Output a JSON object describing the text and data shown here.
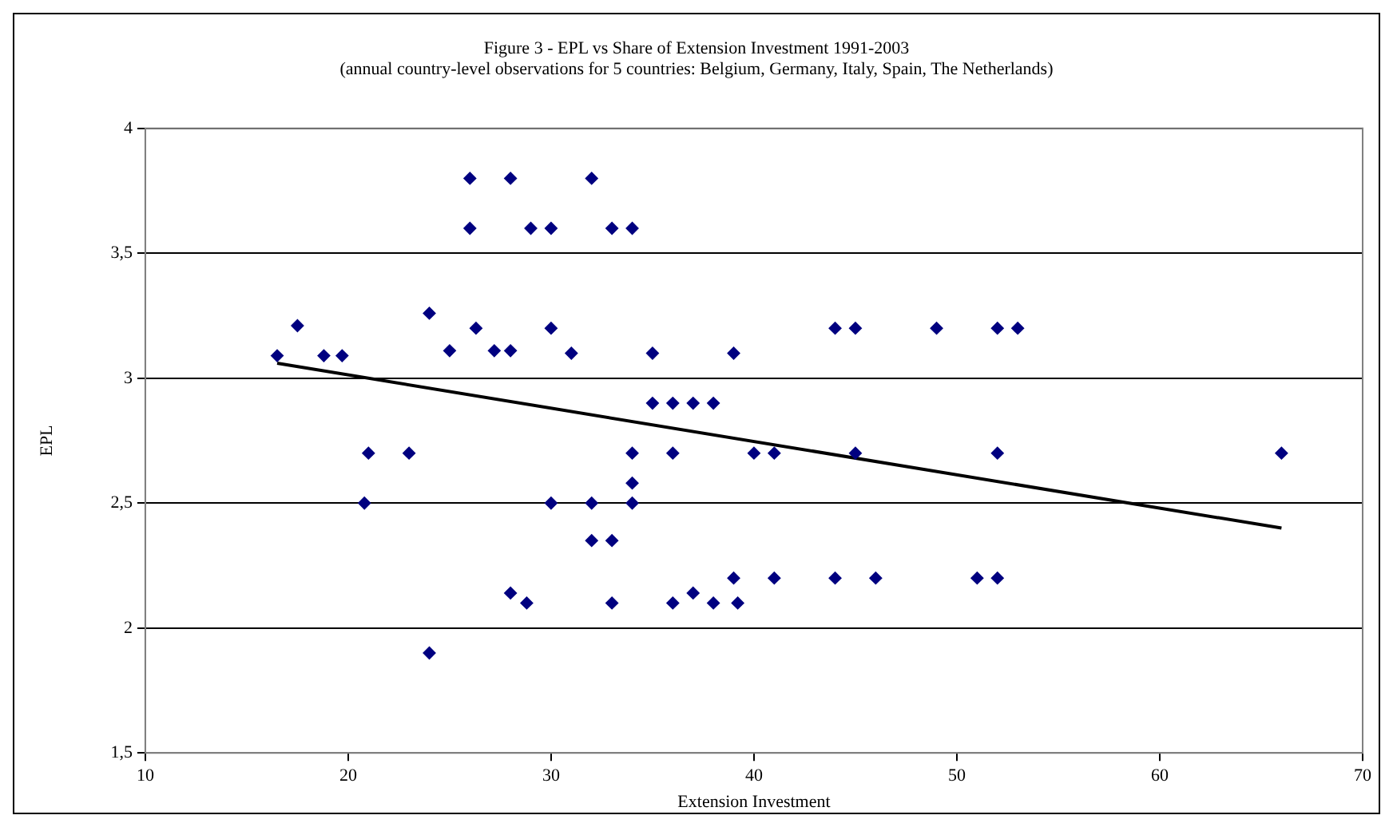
{
  "chart_data": {
    "type": "scatter",
    "title": "Figure 3 - EPL vs Share of Extension Investment 1991-2003",
    "subtitle": "(annual country-level observations for 5 countries: Belgium, Germany, Italy, Spain, The Netherlands)",
    "xlabel": "Extension Investment",
    "ylabel": "EPL",
    "xlim": [
      10,
      70
    ],
    "xticks": [
      10,
      20,
      30,
      40,
      50,
      60,
      70
    ],
    "ylim": [
      1.5,
      4
    ],
    "yticks": [
      {
        "value": 1.5,
        "label": "1,5"
      },
      2,
      {
        "value": 2.5,
        "label": "2,5"
      },
      3,
      {
        "value": 3.5,
        "label": "3,5"
      },
      4
    ],
    "grid": "y",
    "legend": false,
    "series": [
      {
        "type": "scatter",
        "marker": "diamond",
        "color": "#000080",
        "x": [
          16.5,
          17.5,
          18.8,
          19.7,
          24,
          25,
          26.3,
          27.2,
          28,
          30,
          31,
          35,
          39,
          44,
          45,
          49,
          52,
          53,
          26,
          28,
          32,
          26,
          29,
          30,
          33,
          34,
          21,
          23,
          34,
          36,
          40,
          41,
          45,
          52,
          66,
          35,
          36,
          37,
          38,
          20.8,
          30,
          32,
          34,
          34,
          32,
          33,
          28,
          28.8,
          33,
          36,
          37,
          38,
          39.2,
          39,
          41,
          44,
          46,
          51,
          52,
          24
        ],
        "values": [
          3.09,
          3.21,
          3.09,
          3.09,
          3.26,
          3.11,
          3.2,
          3.11,
          3.11,
          3.2,
          3.1,
          3.1,
          3.1,
          3.2,
          3.2,
          3.2,
          3.2,
          3.2,
          3.8,
          3.8,
          3.8,
          3.6,
          3.6,
          3.6,
          3.6,
          3.6,
          2.7,
          2.7,
          2.7,
          2.7,
          2.7,
          2.7,
          2.7,
          2.7,
          2.7,
          2.9,
          2.9,
          2.9,
          2.9,
          2.5,
          2.5,
          2.5,
          2.5,
          2.58,
          2.35,
          2.35,
          2.14,
          2.1,
          2.1,
          2.1,
          2.14,
          2.1,
          2.1,
          2.2,
          2.2,
          2.2,
          2.2,
          2.2,
          2.2,
          1.9
        ]
      },
      {
        "type": "line",
        "marker": "none",
        "color": "#000000",
        "x": [
          16.5,
          66
        ],
        "values": [
          3.06,
          2.4
        ]
      }
    ]
  }
}
